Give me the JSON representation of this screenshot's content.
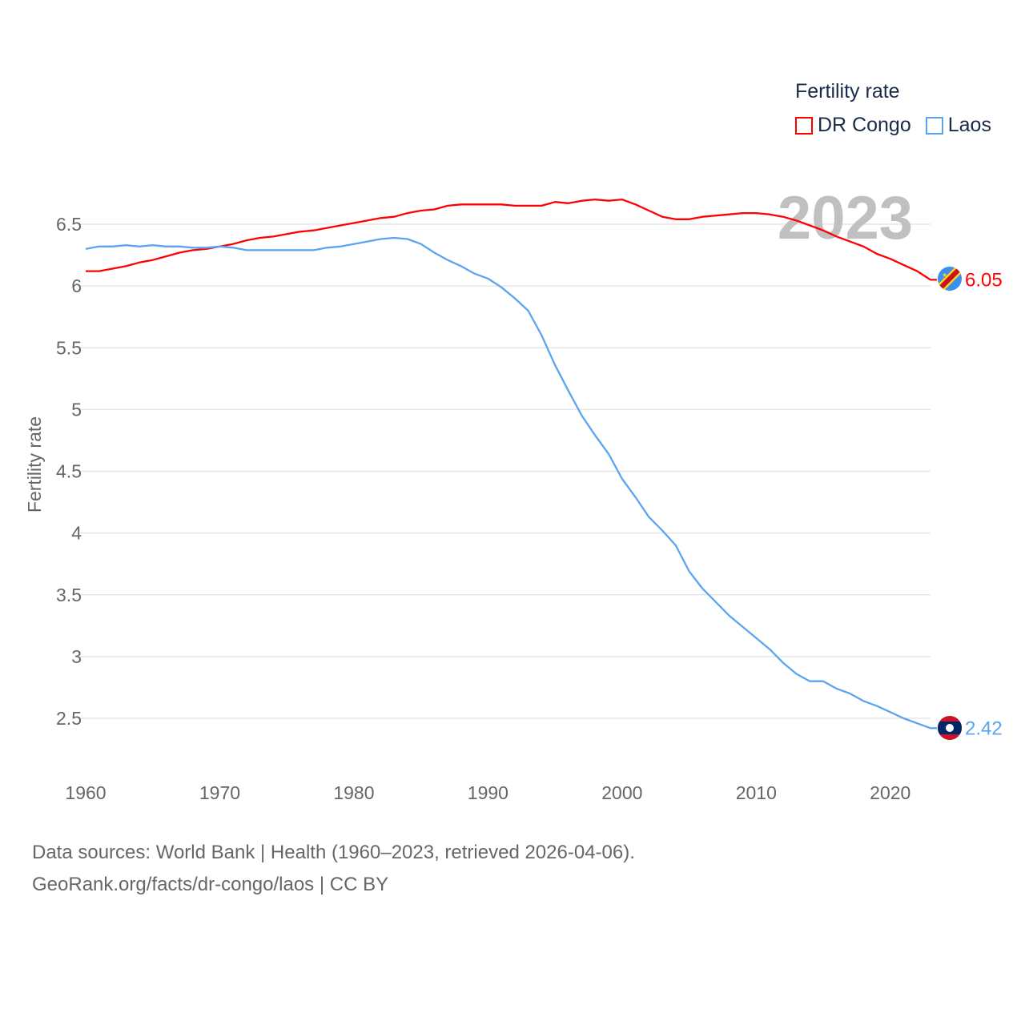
{
  "chart_data": {
    "type": "line",
    "title": "Fertility rate",
    "ylabel": "Fertility rate",
    "xlabel": "",
    "xlim": [
      1960,
      2023
    ],
    "ylim": [
      2.5,
      6.5
    ],
    "yticks": [
      "2.5",
      "3",
      "3.5",
      "4",
      "4.5",
      "5",
      "5.5",
      "6",
      "6.5"
    ],
    "xticks": [
      "1960",
      "1970",
      "1980",
      "1990",
      "2000",
      "2010",
      "2020"
    ],
    "grid": true,
    "legend_placement": "top-right",
    "year_label": "2023",
    "x": [
      1960,
      1961,
      1962,
      1963,
      1964,
      1965,
      1966,
      1967,
      1968,
      1969,
      1970,
      1971,
      1972,
      1973,
      1974,
      1975,
      1976,
      1977,
      1978,
      1979,
      1980,
      1981,
      1982,
      1983,
      1984,
      1985,
      1986,
      1987,
      1988,
      1989,
      1990,
      1991,
      1992,
      1993,
      1994,
      1995,
      1996,
      1997,
      1998,
      1999,
      2000,
      2001,
      2002,
      2003,
      2004,
      2005,
      2006,
      2007,
      2008,
      2009,
      2010,
      2011,
      2012,
      2013,
      2014,
      2015,
      2016,
      2017,
      2018,
      2019,
      2020,
      2021,
      2022,
      2023
    ],
    "series": [
      {
        "name": "DR Congo",
        "color": "#ff0000",
        "end_label": "6.05",
        "values": [
          6.12,
          6.12,
          6.14,
          6.16,
          6.19,
          6.21,
          6.24,
          6.27,
          6.29,
          6.3,
          6.32,
          6.34,
          6.37,
          6.39,
          6.4,
          6.42,
          6.44,
          6.45,
          6.47,
          6.49,
          6.51,
          6.53,
          6.55,
          6.56,
          6.59,
          6.61,
          6.62,
          6.65,
          6.66,
          6.66,
          6.66,
          6.66,
          6.65,
          6.65,
          6.65,
          6.68,
          6.67,
          6.69,
          6.7,
          6.69,
          6.7,
          6.66,
          6.61,
          6.56,
          6.54,
          6.54,
          6.56,
          6.57,
          6.58,
          6.59,
          6.59,
          6.58,
          6.56,
          6.53,
          6.49,
          6.45,
          6.4,
          6.36,
          6.32,
          6.26,
          6.22,
          6.17,
          6.12,
          6.05
        ]
      },
      {
        "name": "Laos",
        "color": "#5ba4f0",
        "end_label": "2.42",
        "values": [
          6.3,
          6.32,
          6.32,
          6.33,
          6.32,
          6.33,
          6.32,
          6.32,
          6.31,
          6.31,
          6.32,
          6.31,
          6.29,
          6.29,
          6.29,
          6.29,
          6.29,
          6.29,
          6.31,
          6.32,
          6.34,
          6.36,
          6.38,
          6.39,
          6.38,
          6.34,
          6.27,
          6.21,
          6.16,
          6.1,
          6.06,
          5.99,
          5.9,
          5.8,
          5.6,
          5.36,
          5.15,
          4.95,
          4.79,
          4.64,
          4.44,
          4.29,
          4.13,
          4.02,
          3.9,
          3.69,
          3.55,
          3.44,
          3.33,
          3.24,
          3.15,
          3.06,
          2.95,
          2.86,
          2.8,
          2.8,
          2.74,
          2.7,
          2.64,
          2.6,
          2.55,
          2.5,
          2.46,
          2.42
        ]
      }
    ]
  },
  "footer": {
    "line1": "Data sources: World Bank | Health (1960–2023, retrieved 2026-04-06).",
    "line2": "GeoRank.org/facts/dr-congo/laos | CC BY"
  }
}
